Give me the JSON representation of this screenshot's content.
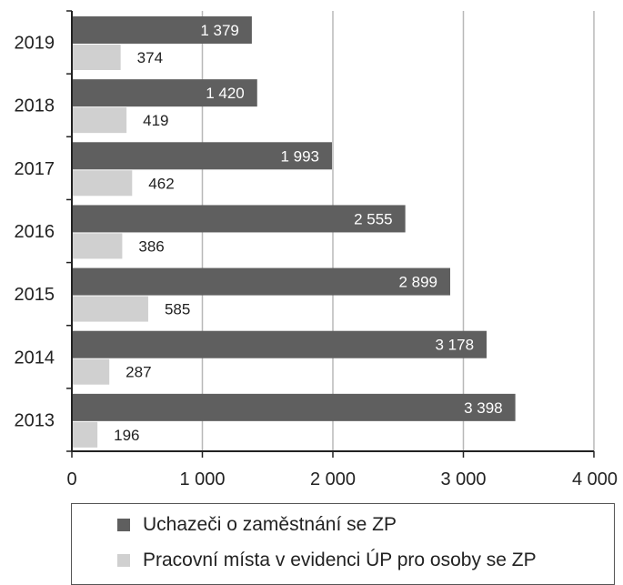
{
  "chart_data": {
    "type": "bar",
    "orientation": "horizontal",
    "categories": [
      "2019",
      "2018",
      "2017",
      "2016",
      "2015",
      "2014",
      "2013"
    ],
    "series": [
      {
        "name": "Uchazeči o zaměstnání se ZP",
        "color": "#5f5f5f",
        "values": [
          1379,
          1420,
          1993,
          2555,
          2899,
          3178,
          3398
        ],
        "labels": [
          "1 379",
          "1 420",
          "1 993",
          "2 555",
          "2 899",
          "3 178",
          "3 398"
        ]
      },
      {
        "name": "Pracovní místa v evidenci ÚP pro osoby se ZP",
        "color": "#d0d0d0",
        "values": [
          374,
          419,
          462,
          386,
          585,
          287,
          196
        ],
        "labels": [
          "374",
          "419",
          "462",
          "386",
          "585",
          "287",
          "196"
        ]
      }
    ],
    "xlim": [
      0,
      4000
    ],
    "xticks": [
      0,
      1000,
      2000,
      3000,
      4000
    ],
    "xtick_labels": [
      "0",
      "1 000",
      "2 000",
      "3 000",
      "4 000"
    ],
    "grid": "vertical",
    "legend_position": "bottom",
    "title": "",
    "xlabel": "",
    "ylabel": ""
  }
}
